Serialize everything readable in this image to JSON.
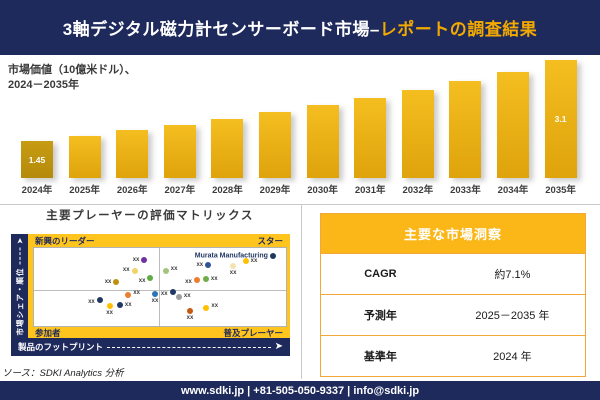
{
  "header": {
    "title_main": "3軸デジタル磁力計センサーボード市場–",
    "title_accent": "レポートの調査結果"
  },
  "chart_data": [
    {
      "type": "bar",
      "title": "市場価値（10億米ドル）、2024－2035年",
      "title_line1": "市場価値（10億米ドル）、",
      "title_line2": "2024－2035年",
      "categories": [
        "2024年",
        "2025年",
        "2026年",
        "2027年",
        "2028年",
        "2029年",
        "2030年",
        "2031年",
        "2032年",
        "2033年",
        "2034年",
        "2035年"
      ],
      "values": [
        1.45,
        1.55,
        1.66,
        1.77,
        1.9,
        2.03,
        2.17,
        2.32,
        2.49,
        2.66,
        2.85,
        3.1
      ],
      "labeled_points": {
        "2024年": "1.45",
        "2035年": "3.1"
      },
      "ylim": [
        0,
        3.5
      ],
      "ylabel": "市場価値（10億米ドル）",
      "first_bar_color": "#bf940f",
      "bar_color": "#e8ad12"
    },
    {
      "type": "scatter",
      "title": "主要プレーヤーの評価マトリックス",
      "xlabel": "製品のフットプリント",
      "ylabel": "市場シェア・順位",
      "quadrants": {
        "top_left": "新興のリーダー",
        "top_right": "スター",
        "bottom_left": "参加者",
        "bottom_right": "普及プレーヤー"
      },
      "points": [
        {
          "x": 43.8,
          "y": 15.4,
          "color": "#7030a0",
          "label": "xx",
          "side": "left"
        },
        {
          "x": 39.9,
          "y": 29.0,
          "color": "#efd469",
          "label": "xx",
          "side": "left",
          "dy": -1
        },
        {
          "x": 46.2,
          "y": 38.6,
          "color": "#5fad41",
          "label": "xx",
          "side": "left",
          "dy": 3
        },
        {
          "x": 32.7,
          "y": 44.0,
          "color": "#bf8f0e",
          "label": "xx",
          "side": "left"
        },
        {
          "x": 52.3,
          "y": 29.0,
          "color": "#a2c57e",
          "label": "xx",
          "side": "right",
          "dy": -2
        },
        {
          "x": 69.1,
          "y": 22.0,
          "color": "#2f5597",
          "label": "xx",
          "side": "left"
        },
        {
          "x": 79.0,
          "y": 23.5,
          "color": "#f4e3b2",
          "label": "xx",
          "side": "below"
        },
        {
          "x": 84.0,
          "y": 17.3,
          "color": "#ffc000",
          "label": "xx",
          "side": "right"
        },
        {
          "x": 94.8,
          "y": 10.7,
          "color": "#1f3864",
          "label": "Murata Manufacturing",
          "side": "left",
          "emph": true
        },
        {
          "x": 64.6,
          "y": 41.6,
          "color": "#ed7d31",
          "label": "xx",
          "side": "left",
          "dy": 2
        },
        {
          "x": 68.2,
          "y": 39.9,
          "color": "#70ad47",
          "label": "xx",
          "side": "right"
        },
        {
          "x": 37.4,
          "y": 60.5,
          "color": "#ed7d31",
          "label": "xx",
          "side": "right",
          "dy": -2
        },
        {
          "x": 48.0,
          "y": 59.6,
          "color": "#2e75b6",
          "label": "xx",
          "side": "below"
        },
        {
          "x": 55.0,
          "y": 56.4,
          "color": "#203864",
          "label": "xx",
          "side": "left",
          "dy": 2
        },
        {
          "x": 57.5,
          "y": 62.6,
          "color": "#9d9d9d",
          "label": "xx",
          "side": "right",
          "dy": -1
        },
        {
          "x": 26.1,
          "y": 66.3,
          "color": "#203864",
          "label": "xx",
          "side": "left",
          "dy": 2
        },
        {
          "x": 30.0,
          "y": 74.9,
          "color": "#ffc000",
          "label": "xx",
          "side": "below"
        },
        {
          "x": 34.1,
          "y": 72.8,
          "color": "#203864",
          "label": "xx",
          "side": "right"
        },
        {
          "x": 61.9,
          "y": 80.6,
          "color": "#c55a11",
          "label": "xx",
          "side": "below"
        },
        {
          "x": 68.4,
          "y": 76.9,
          "color": "#ffc000",
          "label": "xx",
          "side": "right",
          "dy": -2
        }
      ]
    }
  ],
  "insights": {
    "title": "主要な市場洞察",
    "rows": [
      {
        "label": "CAGR",
        "value": "約7.1%"
      },
      {
        "label": "予測年",
        "value": "2025－2035 年"
      },
      {
        "label": "基準年",
        "value": "2024 年"
      }
    ]
  },
  "source": "ソース：SDKI Analytics 分析",
  "footer": "www.sdki.jp | +81-505-050-9337 | info@sdki.jp",
  "colors": {
    "navy": "#1f2a5c",
    "accent_yellow": "#f2a900",
    "matrix_yellow": "#ffc41e",
    "table_header_yellow": "#fbb718",
    "table_border": "#f1a83b"
  }
}
